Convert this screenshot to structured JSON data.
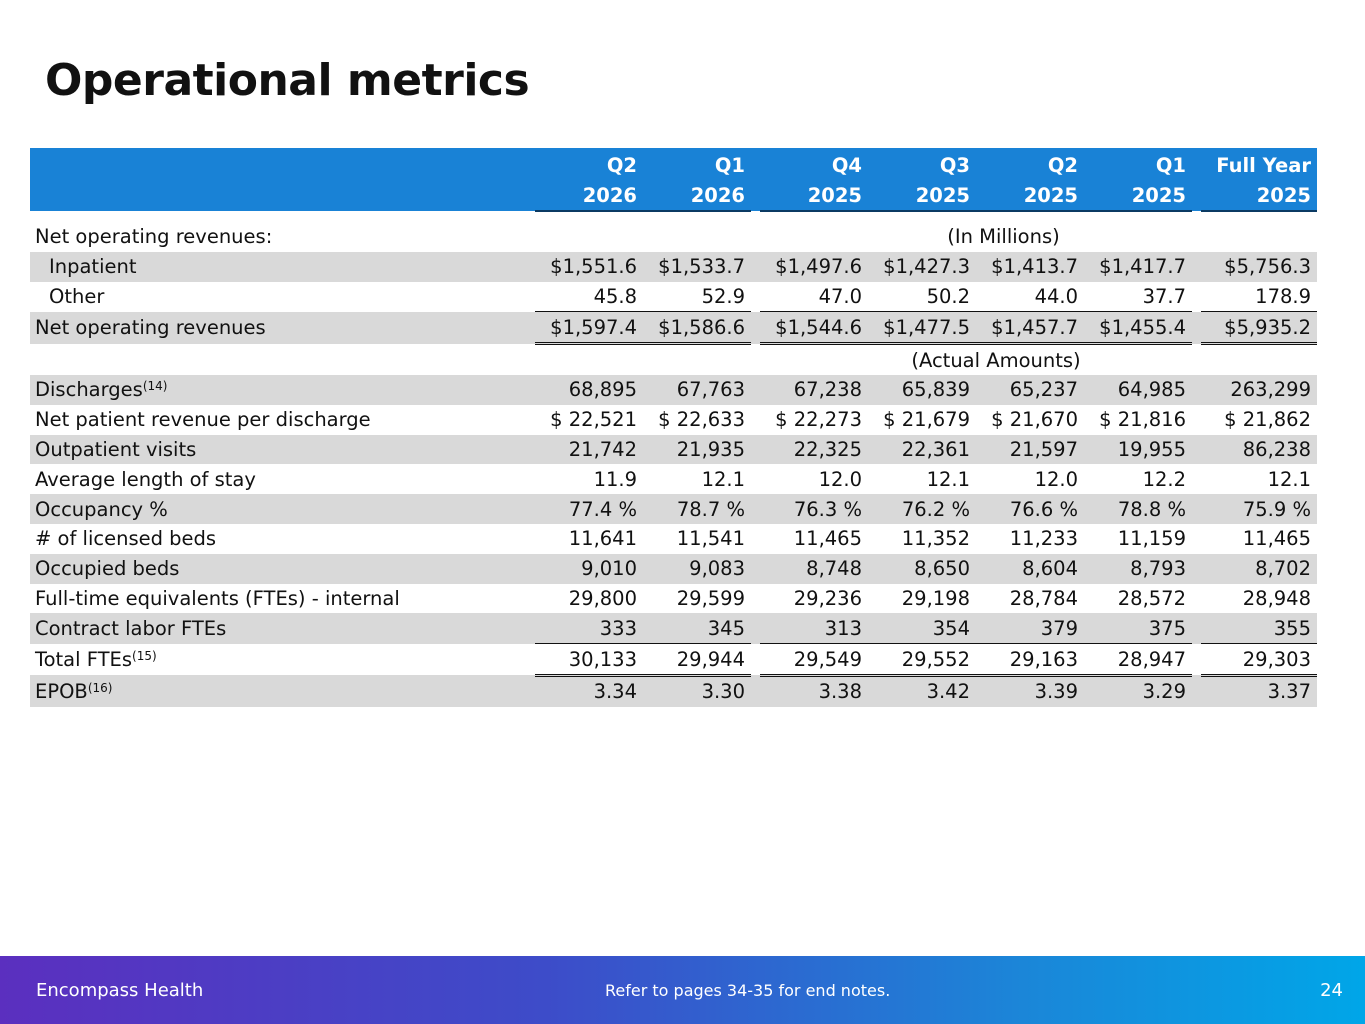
{
  "title": "Operational metrics",
  "header": {
    "columns": [
      {
        "line1": "Q2",
        "line2": "2026"
      },
      {
        "line1": "Q1",
        "line2": "2026"
      },
      {
        "line1": "Q4",
        "line2": "2025"
      },
      {
        "line1": "Q3",
        "line2": "2025"
      },
      {
        "line1": "Q2",
        "line2": "2025"
      },
      {
        "line1": "Q1",
        "line2": "2025"
      },
      {
        "line1": "Full Year",
        "line2": "2025"
      }
    ]
  },
  "units": {
    "millions": "(In Millions)",
    "actual": "(Actual Amounts)"
  },
  "rows": {
    "net_rev_heading": "Net operating revenues:",
    "inpatient": {
      "label": "Inpatient",
      "values": [
        "$1,551.6",
        "$1,533.7",
        "$1,497.6",
        "$1,427.3",
        "$1,413.7",
        "$1,417.7",
        "$5,756.3"
      ]
    },
    "other": {
      "label": "Other",
      "values": [
        "45.8",
        "52.9",
        "47.0",
        "50.2",
        "44.0",
        "37.7",
        "178.9"
      ]
    },
    "net_rev": {
      "label": "Net operating revenues",
      "values": [
        "$1,597.4",
        "$1,586.6",
        "$1,544.6",
        "$1,477.5",
        "$1,457.7",
        "$1,455.4",
        "$5,935.2"
      ]
    },
    "discharges": {
      "label": "Discharges",
      "note": "(14)",
      "values": [
        "68,895",
        "67,763",
        "67,238",
        "65,839",
        "65,237",
        "64,985",
        "263,299"
      ]
    },
    "npr_per_discharge": {
      "label": "Net patient revenue per discharge",
      "values": [
        "$ 22,521",
        "$ 22,633",
        "$ 22,273",
        "$ 21,679",
        "$ 21,670",
        "$ 21,816",
        "$ 21,862"
      ]
    },
    "outpatient": {
      "label": "Outpatient visits",
      "values": [
        "21,742",
        "21,935",
        "22,325",
        "22,361",
        "21,597",
        "19,955",
        "86,238"
      ]
    },
    "alos": {
      "label": "Average length of stay",
      "values": [
        "11.9",
        "12.1",
        "12.0",
        "12.1",
        "12.0",
        "12.2",
        "12.1"
      ]
    },
    "occupancy": {
      "label": "Occupancy %",
      "values": [
        "77.4 %",
        "78.7 %",
        "76.3 %",
        "76.2 %",
        "76.6 %",
        "78.8 %",
        "75.9 %"
      ]
    },
    "licensed_beds": {
      "label": "# of licensed beds",
      "values": [
        "11,641",
        "11,541",
        "11,465",
        "11,352",
        "11,233",
        "11,159",
        "11,465"
      ]
    },
    "occupied_beds": {
      "label": "Occupied beds",
      "values": [
        "9,010",
        "9,083",
        "8,748",
        "8,650",
        "8,604",
        "8,793",
        "8,702"
      ]
    },
    "ftes_internal": {
      "label": "Full-time equivalents (FTEs) - internal",
      "values": [
        "29,800",
        "29,599",
        "29,236",
        "29,198",
        "28,784",
        "28,572",
        "28,948"
      ]
    },
    "contract_ftes": {
      "label": "Contract labor FTEs",
      "values": [
        "333",
        "345",
        "313",
        "354",
        "379",
        "375",
        "355"
      ]
    },
    "total_ftes": {
      "label": "Total FTEs",
      "note": "(15)",
      "values": [
        "30,133",
        "29,944",
        "29,549",
        "29,552",
        "29,163",
        "28,947",
        "29,303"
      ]
    },
    "epob": {
      "label": "EPOB",
      "note": "(16)",
      "values": [
        "3.34",
        "3.30",
        "3.38",
        "3.42",
        "3.39",
        "3.29",
        "3.37"
      ]
    }
  },
  "footer": {
    "brand": "Encompass Health",
    "note": "Refer to pages 34-35 for end notes.",
    "page": "24"
  }
}
